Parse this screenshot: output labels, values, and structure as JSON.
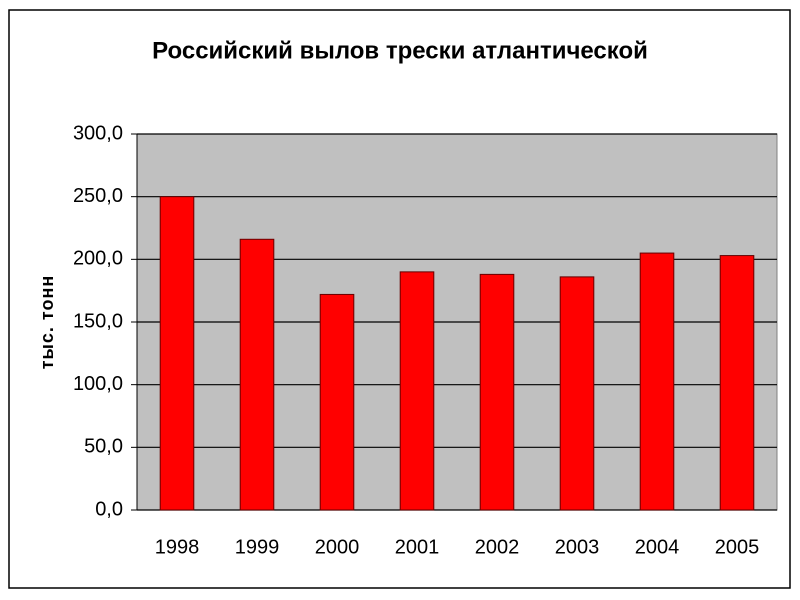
{
  "chart_data": {
    "type": "bar",
    "title": "Российский вылов трески атлантической",
    "y_label": "тыс. тонн",
    "categories": [
      "1998",
      "1999",
      "2000",
      "2001",
      "2002",
      "2003",
      "2004",
      "2005"
    ],
    "values": [
      250,
      216,
      172,
      190,
      188,
      186,
      205,
      203
    ],
    "color": "#ff0000",
    "plot_color": "#c0c0c0",
    "ylim": [
      0,
      300
    ],
    "yticks": [
      {
        "value": 0,
        "label": "0,0"
      },
      {
        "value": 50,
        "label": "50,0"
      },
      {
        "value": 100,
        "label": "100,0"
      },
      {
        "value": 150,
        "label": "150,0"
      },
      {
        "value": 200,
        "label": "200,0"
      },
      {
        "value": 250,
        "label": "250,0"
      },
      {
        "value": 300,
        "label": "300,0"
      }
    ],
    "grid": true
  }
}
